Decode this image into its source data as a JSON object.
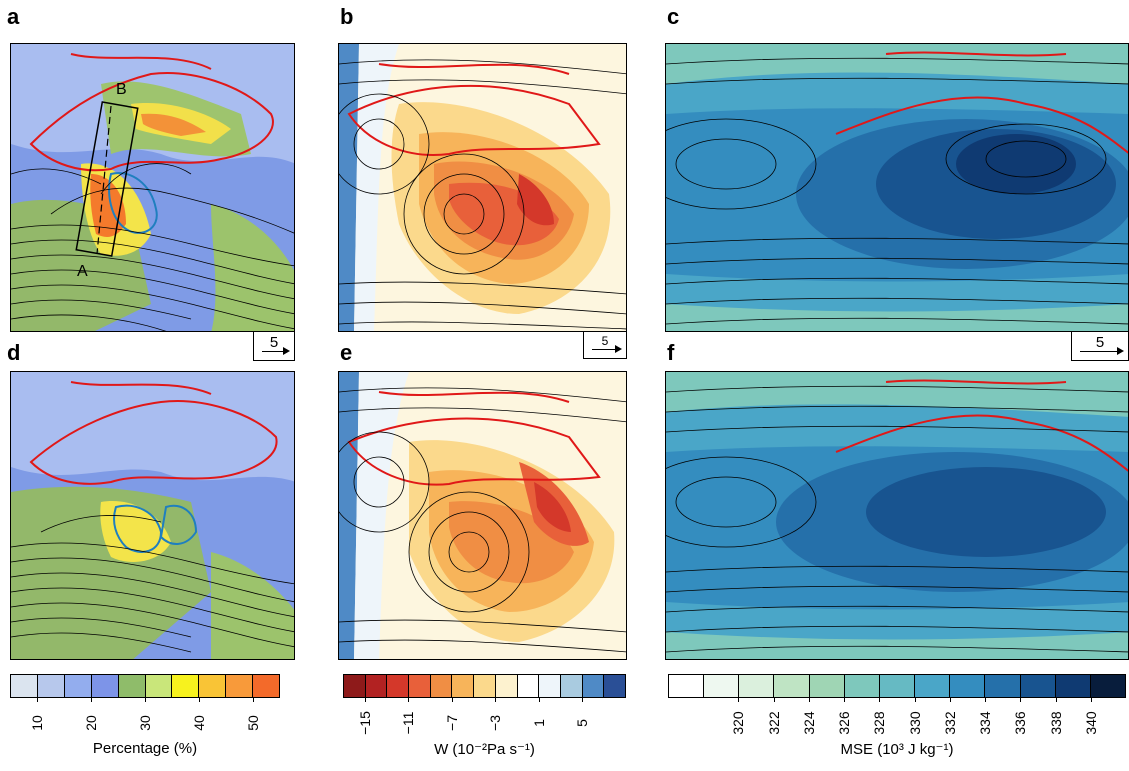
{
  "panels": {
    "a": {
      "label": "a",
      "box_label_a": "A",
      "box_label_b": "B"
    },
    "b": {
      "label": "b"
    },
    "c": {
      "label": "c"
    },
    "d": {
      "label": "d"
    },
    "e": {
      "label": "e"
    },
    "f": {
      "label": "f"
    }
  },
  "vector_keys": {
    "a": "5",
    "b": "5",
    "c": "5"
  },
  "colorbars": {
    "percentage": {
      "title": "Percentage (%)",
      "colors": [
        "#dbe4ef",
        "#b7c8ec",
        "#93adee",
        "#7d94e8",
        "#8fbc6a",
        "#c9e67a",
        "#f7f21e",
        "#f9c436",
        "#f89a3a",
        "#f36a2a"
      ],
      "ticks": [
        "10",
        "20",
        "30",
        "40",
        "50"
      ]
    },
    "w": {
      "title": "W (10⁻²Pa s⁻¹)",
      "colors": [
        "#8e1a1a",
        "#b22222",
        "#d4382a",
        "#e8603a",
        "#f08e44",
        "#f7b45a",
        "#fbd98c",
        "#fdf2cf",
        "#ffffff",
        "#eef5fa",
        "#a9cbe0",
        "#4f8ac6",
        "#2a4f96"
      ],
      "ticks": [
        "−15",
        "−11",
        "−7",
        "−3",
        "1",
        "5"
      ]
    },
    "mse": {
      "title": "MSE (10³ J kg⁻¹)",
      "colors": [
        "#ffffff",
        "#eef8f0",
        "#dbf0dd",
        "#bfe4c4",
        "#9fd5b4",
        "#7ec8bc",
        "#66bac3",
        "#4aa6c8",
        "#348dbf",
        "#2570aa",
        "#185490",
        "#0f3a72",
        "#081d3c"
      ],
      "ticks": [
        "320",
        "322",
        "324",
        "326",
        "328",
        "330",
        "332",
        "334",
        "336",
        "338",
        "340"
      ]
    }
  }
}
